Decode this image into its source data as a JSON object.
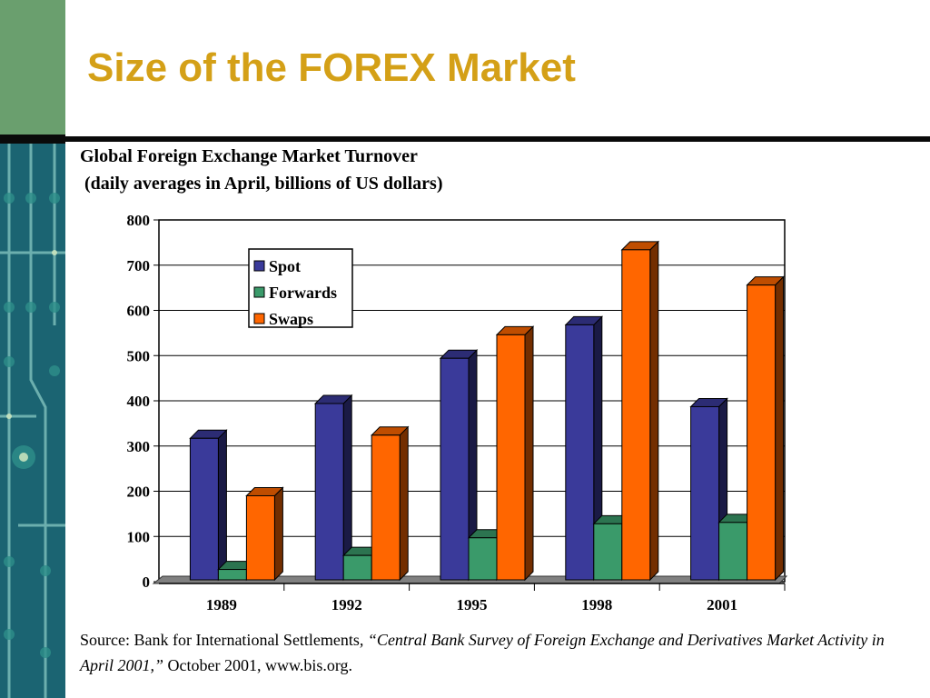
{
  "slide": {
    "title": "Size of the FOREX Market",
    "source_prefix": "Source: Bank for International Settlements",
    "source_italic": ", “Central Bank Survey of Foreign Exchange and Derivatives Market Activity in April 2001,”",
    "source_suffix": " October 2001, www.bis.org."
  },
  "colors": {
    "title": "#d4a017",
    "sidebar_green": "#6a9f6e",
    "sidebar_teal": "#1d6b78"
  },
  "chart_data": {
    "type": "bar",
    "title": "Global Foreign Exchange Market Turnover",
    "subtitle": " (daily averages in April, billions of US dollars)",
    "categories": [
      "1989",
      "1992",
      "1995",
      "1998",
      "2001"
    ],
    "series": [
      {
        "name": "Spot",
        "values": [
          317,
          394,
          494,
          568,
          387
        ],
        "color": "#3a3a9a"
      },
      {
        "name": "Forwards",
        "values": [
          27,
          58,
          97,
          128,
          131
        ],
        "color": "#3a9a6a"
      },
      {
        "name": "Swaps",
        "values": [
          190,
          324,
          546,
          734,
          656
        ],
        "color": "#ff6600"
      }
    ],
    "ylim": [
      0,
      800
    ],
    "yticks": [
      0,
      100,
      200,
      300,
      400,
      500,
      600,
      700,
      800
    ],
    "grid": true,
    "legend": "top-left",
    "style": "3d-bar"
  }
}
